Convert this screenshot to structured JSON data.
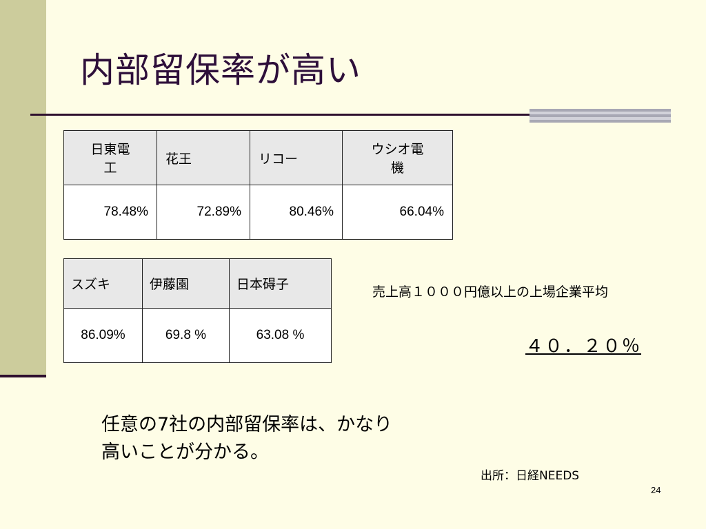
{
  "slide": {
    "title": "内部留保率が高い",
    "page_number": "24"
  },
  "table1": {
    "headers": [
      "日東電\n工",
      "花王",
      "リコー",
      "ウシオ電\n機"
    ],
    "values": [
      "78.48%",
      "72.89%",
      "80.46%",
      "66.04%"
    ]
  },
  "table2": {
    "headers": [
      "スズキ",
      "伊藤園",
      "日本碍子"
    ],
    "values": [
      "86.09%",
      "69.8 %",
      "63.08 %"
    ]
  },
  "average": {
    "label": "売上高１０００円億以上の上場企業平均",
    "value": "４０．２０％"
  },
  "conclusion": {
    "line1": "任意の7社の内部留保率は、かなり",
    "line2": "高いことが分かる。"
  },
  "source": "出所：日経NEEDS",
  "colors": {
    "background": "#fefde6",
    "left_band": "#cccc9c",
    "title": "#2e0f3a",
    "rule": "#2e0f2e",
    "header_cell": "#e8e8e8"
  }
}
